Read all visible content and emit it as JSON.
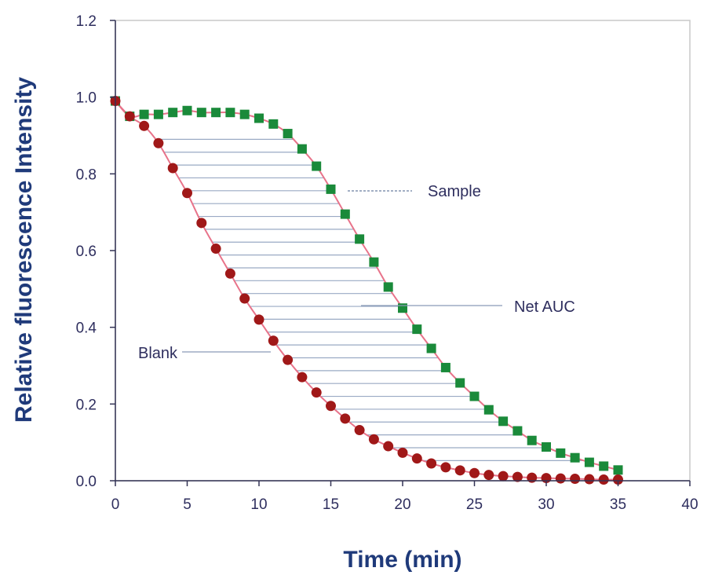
{
  "chart_data": {
    "type": "scatter",
    "xlabel": "Time (min)",
    "ylabel": "Relative fluorescence Intensity",
    "xlim": [
      0,
      40
    ],
    "ylim": [
      0.0,
      1.2
    ],
    "x_ticks": [
      "0",
      "5",
      "10",
      "15",
      "20",
      "25",
      "30",
      "35",
      "40"
    ],
    "y_ticks": [
      "0.0",
      "0.2",
      "0.4",
      "0.6",
      "0.8",
      "1.0",
      "1.2"
    ],
    "grid": false,
    "series": [
      {
        "name": "Sample",
        "marker": "square",
        "color": "#1a8a3a",
        "x": [
          0,
          1,
          2,
          3,
          4,
          5,
          6,
          7,
          8,
          9,
          10,
          11,
          12,
          13,
          14,
          15,
          16,
          17,
          18,
          19,
          20,
          21,
          22,
          23,
          24,
          25,
          26,
          27,
          28,
          29,
          30,
          31,
          32,
          33,
          34,
          35
        ],
        "y": [
          0.99,
          0.95,
          0.955,
          0.955,
          0.96,
          0.965,
          0.96,
          0.96,
          0.96,
          0.955,
          0.945,
          0.93,
          0.905,
          0.865,
          0.82,
          0.76,
          0.695,
          0.63,
          0.57,
          0.505,
          0.45,
          0.395,
          0.345,
          0.295,
          0.255,
          0.22,
          0.185,
          0.155,
          0.13,
          0.105,
          0.088,
          0.072,
          0.06,
          0.048,
          0.038,
          0.028
        ]
      },
      {
        "name": "Blank",
        "marker": "circle",
        "color": "#a01818",
        "x": [
          0,
          1,
          2,
          3,
          4,
          5,
          6,
          7,
          8,
          9,
          10,
          11,
          12,
          13,
          14,
          15,
          16,
          17,
          18,
          19,
          20,
          21,
          22,
          23,
          24,
          25,
          26,
          27,
          28,
          29,
          30,
          31,
          32,
          33,
          34,
          35
        ],
        "y": [
          0.99,
          0.95,
          0.925,
          0.88,
          0.815,
          0.75,
          0.672,
          0.605,
          0.54,
          0.475,
          0.42,
          0.365,
          0.315,
          0.27,
          0.23,
          0.195,
          0.162,
          0.132,
          0.108,
          0.09,
          0.073,
          0.058,
          0.045,
          0.035,
          0.027,
          0.02,
          0.015,
          0.012,
          0.01,
          0.008,
          0.007,
          0.006,
          0.005,
          0.004,
          0.003,
          0.003
        ]
      }
    ],
    "annotations": [
      {
        "text": "Sample"
      },
      {
        "text": "Net AUC"
      },
      {
        "text": "Blank"
      }
    ]
  }
}
